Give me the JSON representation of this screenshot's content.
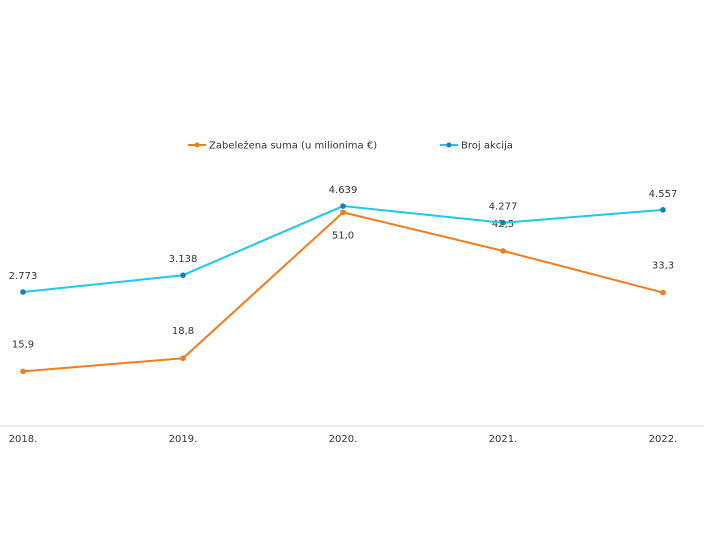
{
  "chart_data": {
    "type": "line",
    "title": "",
    "xlabel": "",
    "ylabel": "",
    "categories": [
      "2018.",
      "2019.",
      "2020.",
      "2021.",
      "2022."
    ],
    "legend_position": "top-center",
    "grid": false,
    "series": [
      {
        "name": "Zabeležena suma (u milionima €)",
        "color": "#f07d1e",
        "values": [
          15.9,
          18.8,
          51.0,
          42.5,
          33.3
        ],
        "labels": [
          "15,9",
          "18,8",
          "51,0",
          "42,5",
          "33,3"
        ],
        "ylim": [
          0,
          60
        ]
      },
      {
        "name": "Broj akcija",
        "color": "#1ec8e6",
        "marker_color": "#1a7fb0",
        "values": [
          2773,
          3138,
          4639,
          4277,
          4557
        ],
        "labels": [
          "2.773",
          "3.138",
          "4.639",
          "4.277",
          "4.557"
        ],
        "ylim": [
          0,
          6000
        ]
      }
    ]
  }
}
